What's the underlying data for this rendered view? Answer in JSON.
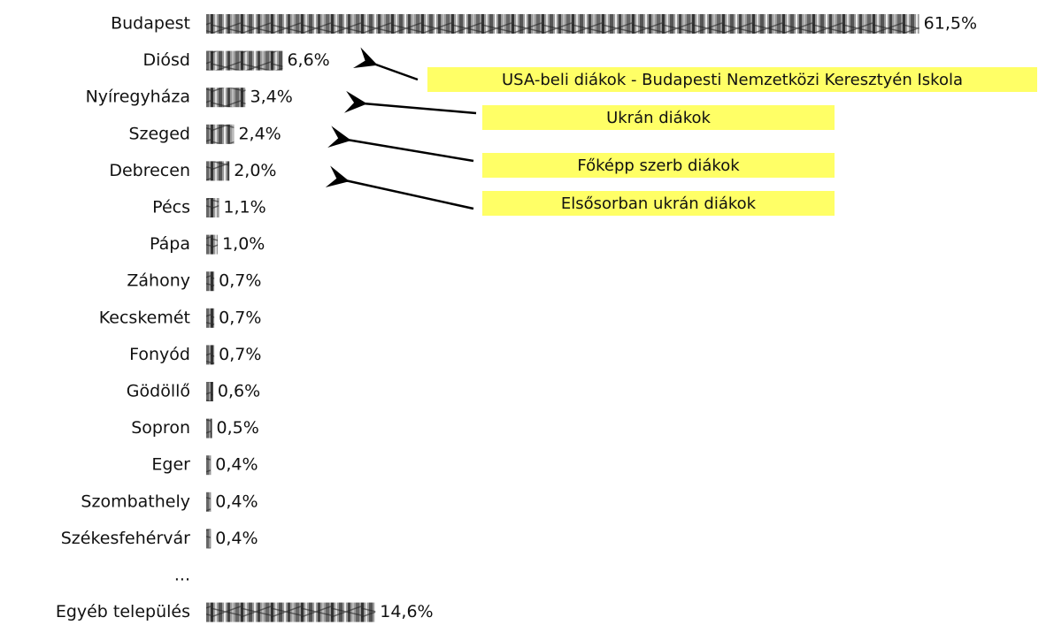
{
  "chart_data": {
    "type": "bar",
    "orientation": "horizontal",
    "categories": [
      "Budapest",
      "Diósd",
      "Nyíregyháza",
      "Szeged",
      "Debrecen",
      "Pécs",
      "Pápa",
      "Záhony",
      "Kecskemét",
      "Fonyód",
      "Gödöllő",
      "Sopron",
      "Eger",
      "Szombathely",
      "Székesfehérvár",
      "...",
      "Egyéb település"
    ],
    "values": [
      61.5,
      6.6,
      3.4,
      2.4,
      2.0,
      1.1,
      1.0,
      0.7,
      0.7,
      0.7,
      0.6,
      0.5,
      0.4,
      0.4,
      0.4,
      null,
      14.6
    ],
    "value_labels": [
      "61,5%",
      "6,6%",
      "3,4%",
      "2,4%",
      "2,0%",
      "1,1%",
      "1,0%",
      "0,7%",
      "0,7%",
      "0,7%",
      "0,6%",
      "0,5%",
      "0,4%",
      "0,4%",
      "0,4%",
      null,
      "14,6%"
    ],
    "annotations": [
      "USA-beli diákok - Budapesti Nemzetközi Keresztyén Iskola",
      "Ukrán diákok",
      "Főképp szerb diákok",
      "Elsősorban ukrán diákok"
    ],
    "annotation_color": "#ffff66"
  }
}
